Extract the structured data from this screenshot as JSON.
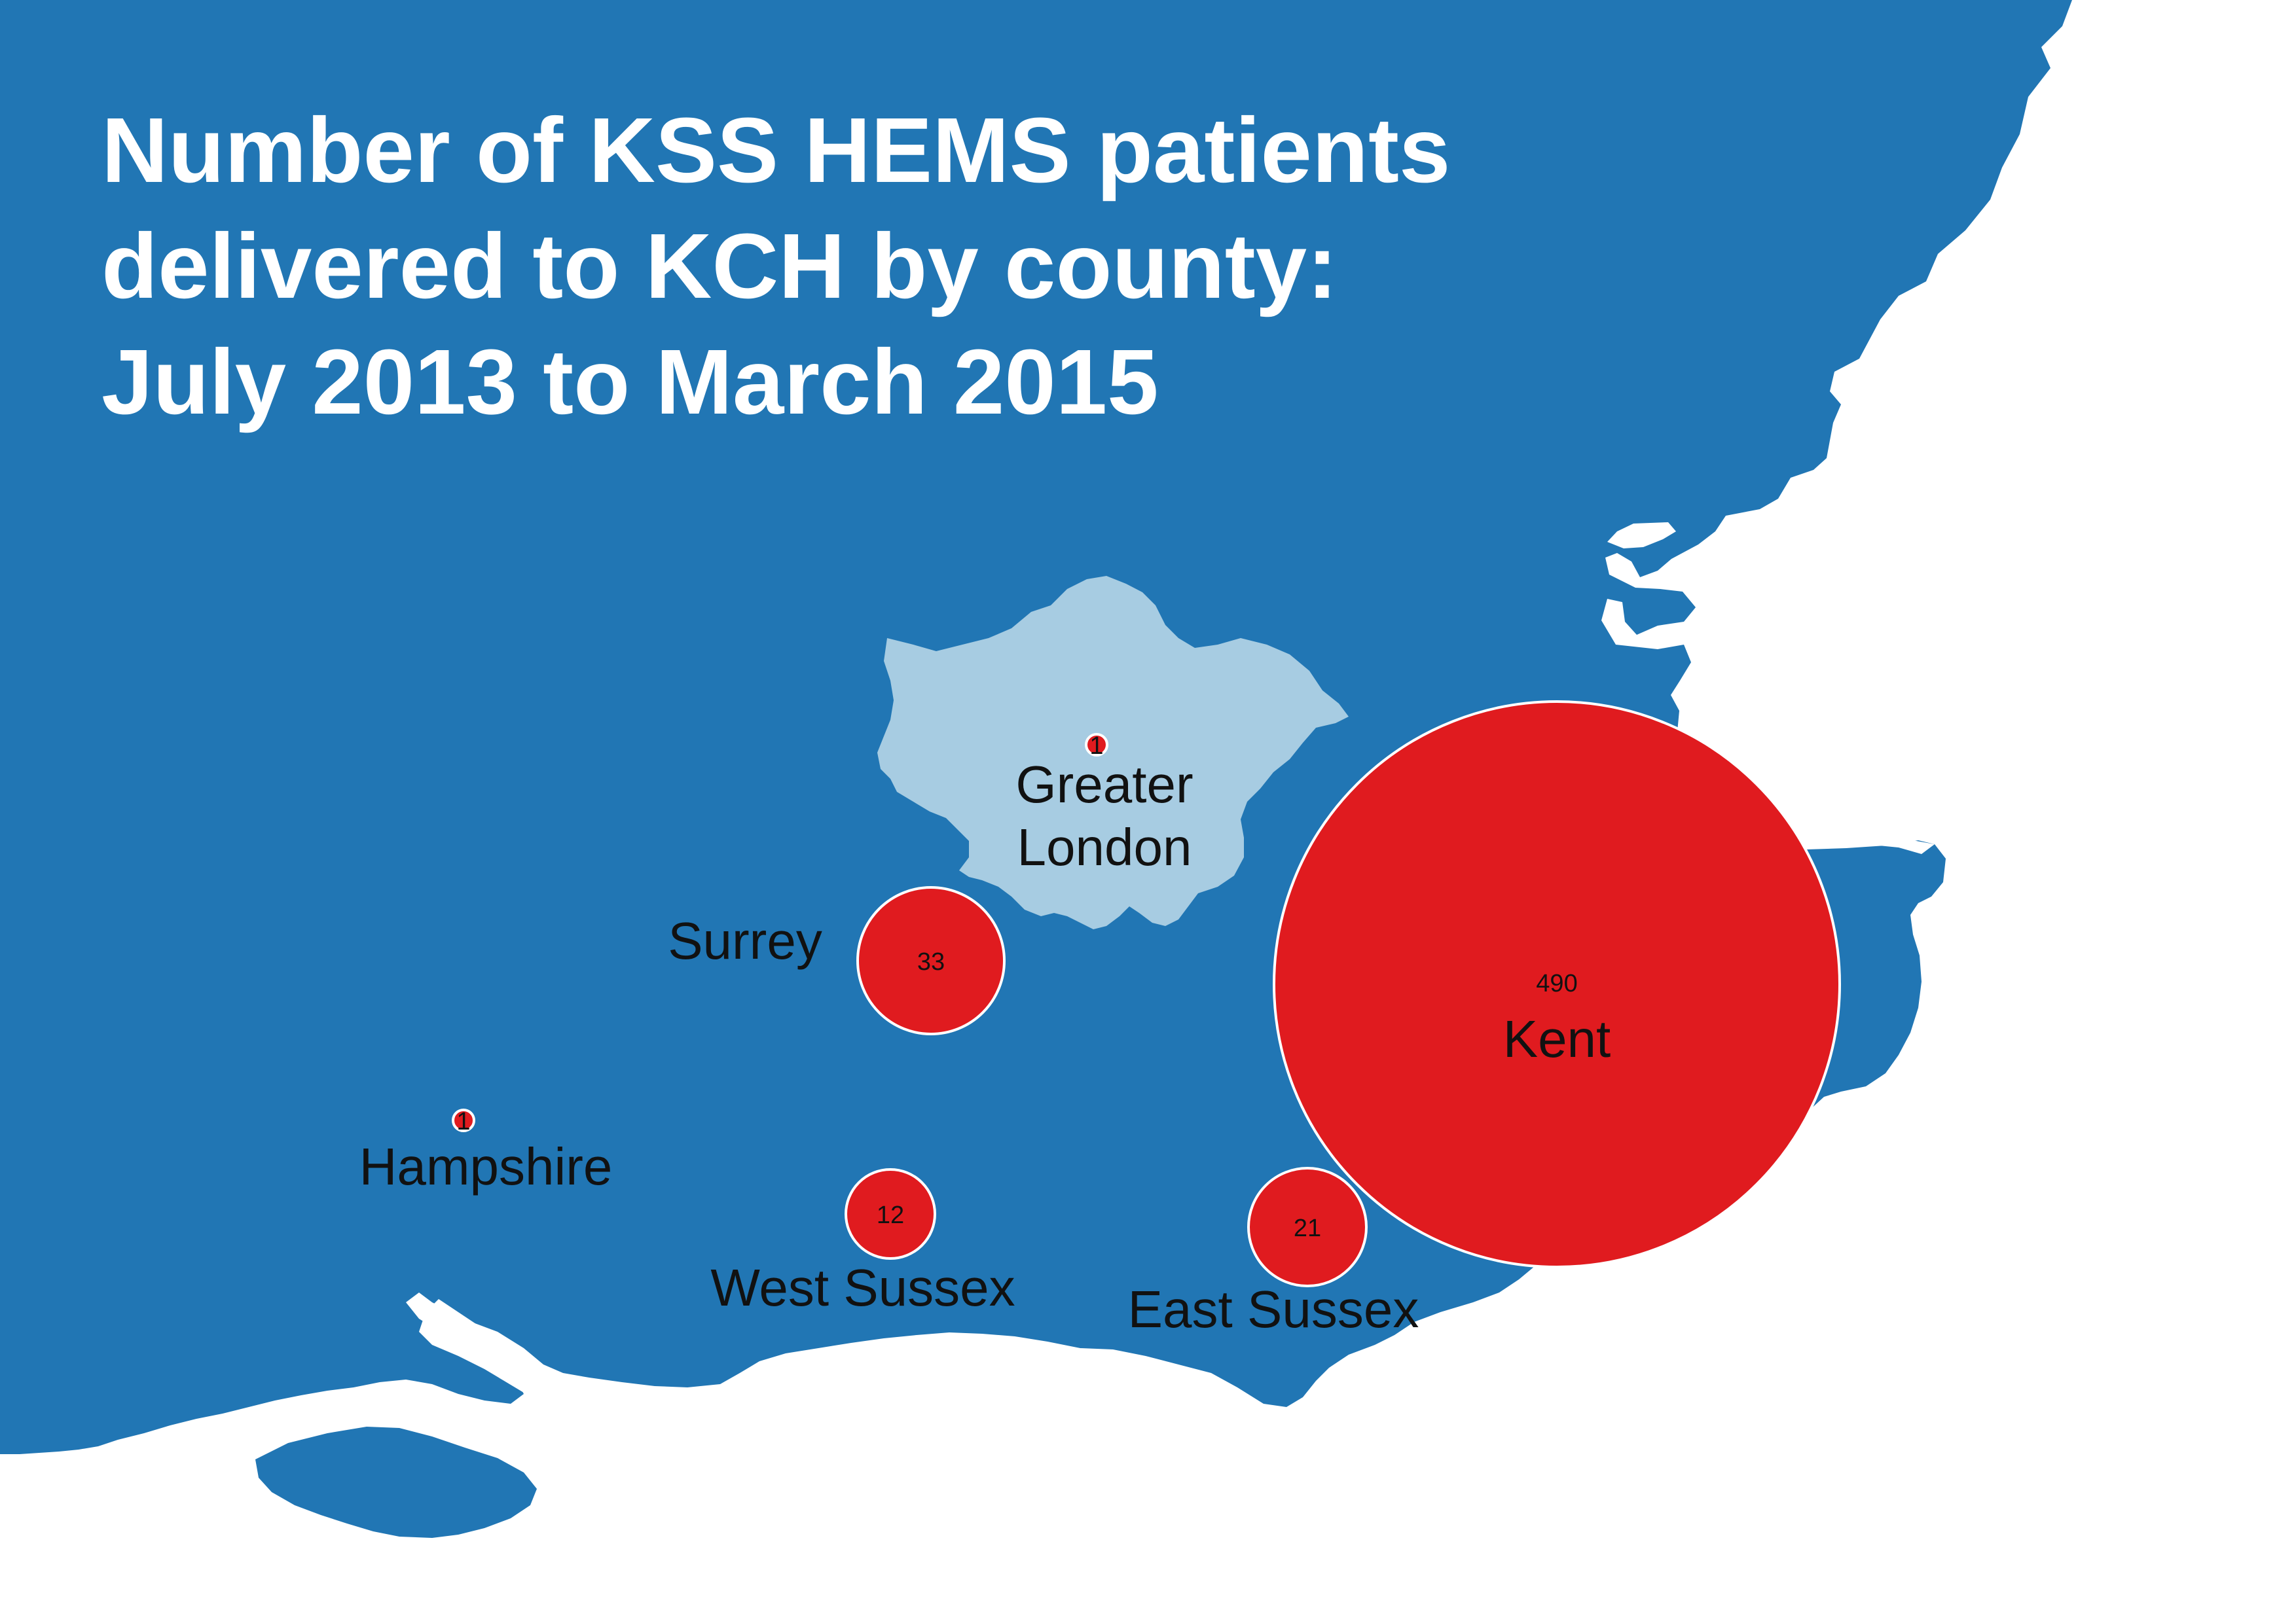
{
  "title": {
    "lines": [
      "Number of KSS HEMS patients",
      "delivered to KCH by county:",
      "July 2013 to March 2015"
    ]
  },
  "colors": {
    "land": "#2176b4",
    "sea": "#ffffff",
    "greater_london": "#a7cce2",
    "bubble": "#e01b1f",
    "bubble_stroke": "#ffffff",
    "title_text": "#ffffff",
    "label_text": "#111111"
  },
  "counties": [
    {
      "id": "greater-london",
      "name_lines": [
        "Greater",
        "London"
      ],
      "value": 1,
      "value_label": "1"
    },
    {
      "id": "surrey",
      "name_lines": [
        "Surrey"
      ],
      "value": 33,
      "value_label": "33"
    },
    {
      "id": "kent",
      "name_lines": [
        "Kent"
      ],
      "value": 490,
      "value_label": "490"
    },
    {
      "id": "hampshire",
      "name_lines": [
        "Hampshire"
      ],
      "value": 1,
      "value_label": "1"
    },
    {
      "id": "west-sussex",
      "name_lines": [
        "West Sussex"
      ],
      "value": 12,
      "value_label": "12"
    },
    {
      "id": "east-sussex",
      "name_lines": [
        "East Sussex"
      ],
      "value": 21,
      "value_label": "21"
    }
  ]
}
